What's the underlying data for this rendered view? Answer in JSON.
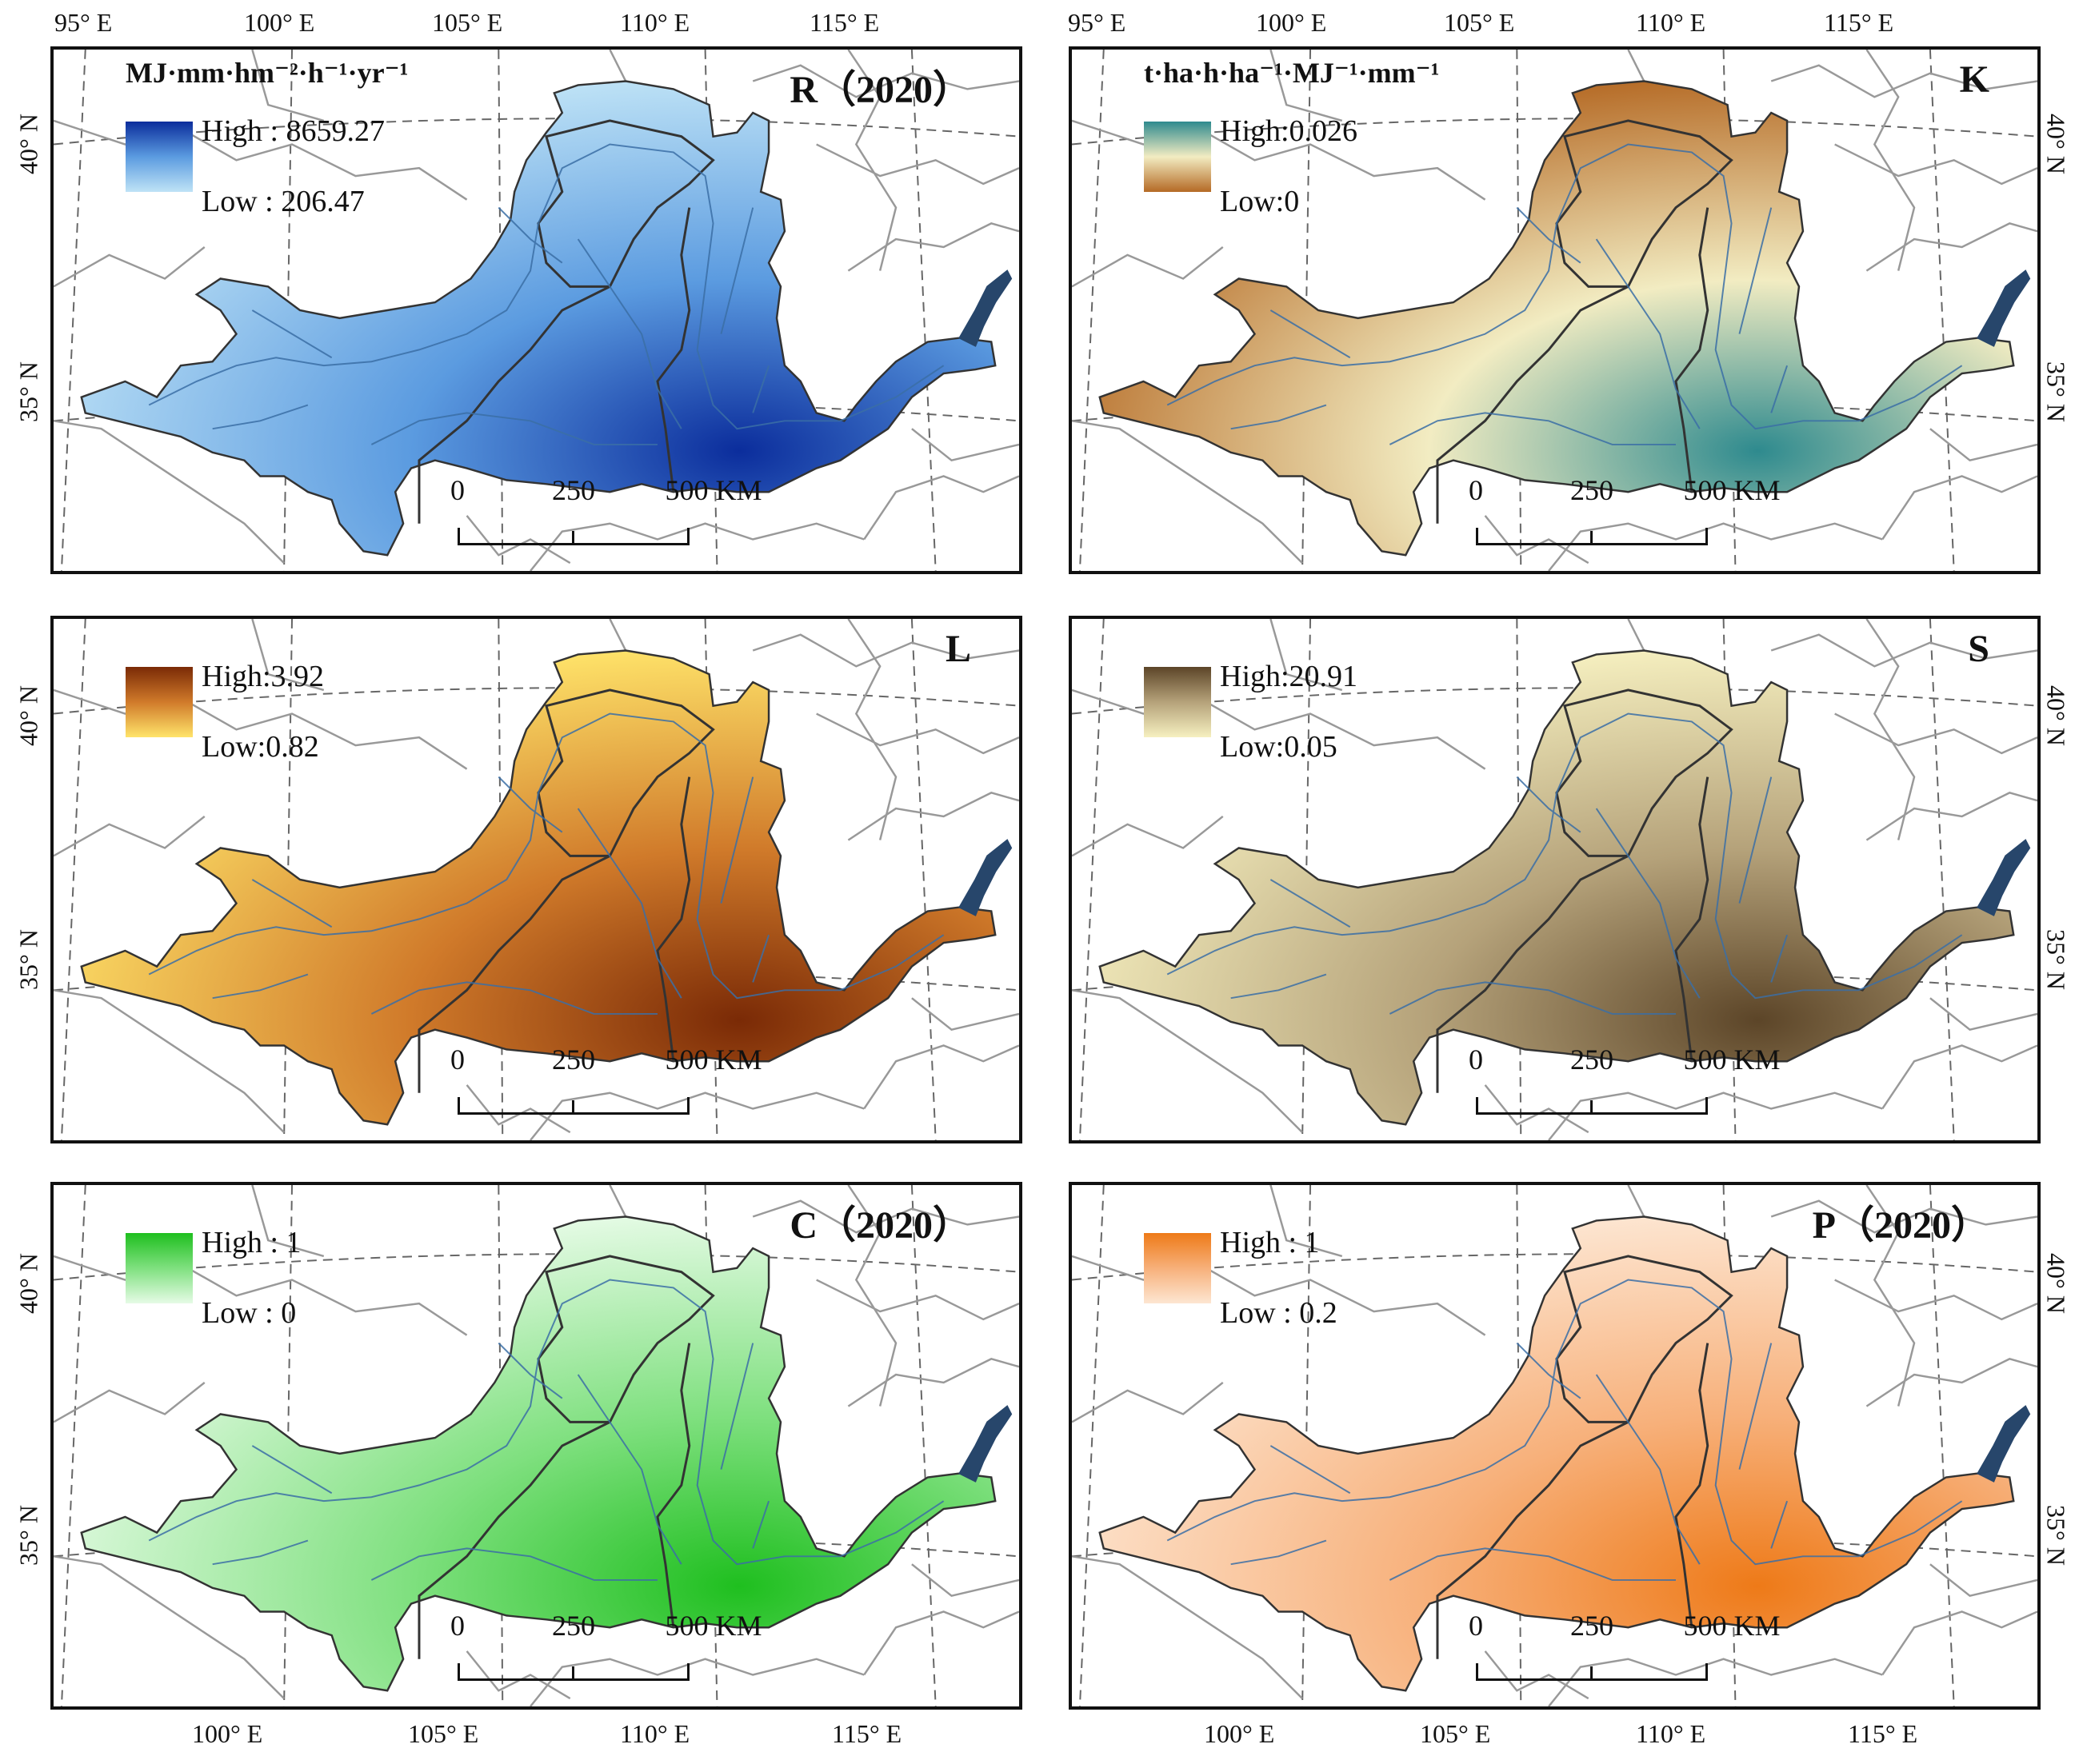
{
  "axes": {
    "top_lon": [
      "95° E",
      "100° E",
      "105° E",
      "110° E",
      "115° E"
    ],
    "bottom_lon": [
      "100° E",
      "105° E",
      "110° E",
      "115° E"
    ],
    "lat": [
      "40° N",
      "35° N"
    ]
  },
  "scale_bar": {
    "labels": [
      "0",
      "250",
      "500 KM"
    ]
  },
  "panels": [
    {
      "id": "R",
      "title": "R（2020）",
      "unit": "MJ·mm·hm⁻²·h⁻¹·yr⁻¹",
      "high": "High : 8659.27",
      "low": "Low : 206.47",
      "colors": {
        "high": "#0b2d9c",
        "mid": "#5b9be0",
        "low": "#bfe3f6",
        "basin": "#7ab3e6"
      }
    },
    {
      "id": "K",
      "title": "K",
      "unit": "t·ha·h·ha⁻¹·MJ⁻¹·mm⁻¹",
      "high": "High:0.026",
      "low": "Low:0",
      "colors": {
        "high": "#2e8a8e",
        "mid": "#f2ecc2",
        "low": "#b56a25",
        "basin": "#cdbf85"
      }
    },
    {
      "id": "L",
      "title": "L",
      "unit": "",
      "high": "High:3.92",
      "low": "Low:0.82",
      "colors": {
        "high": "#7a2a06",
        "mid": "#d07a2a",
        "low": "#ffe46a",
        "basin": "#b8601c"
      }
    },
    {
      "id": "S",
      "title": "S",
      "unit": "",
      "high": "High:20.91",
      "low": "Low:0.05",
      "colors": {
        "high": "#5c4528",
        "mid": "#b5a27a",
        "low": "#f6f0c0",
        "basin": "#e2d6a0"
      }
    },
    {
      "id": "C",
      "title": "C（2020）",
      "unit": "",
      "high": "High : 1",
      "low": "Low : 0",
      "colors": {
        "high": "#1fbf1f",
        "mid": "#7fe07f",
        "low": "#e6fbe6",
        "basin": "#8fe08a"
      }
    },
    {
      "id": "P",
      "title": "P（2020）",
      "unit": "",
      "high": "High : 1",
      "low": "Low : 0.2",
      "colors": {
        "high": "#ee7a18",
        "mid": "#f7b07a",
        "low": "#fde6d2",
        "basin": "#ee8220"
      }
    }
  ]
}
